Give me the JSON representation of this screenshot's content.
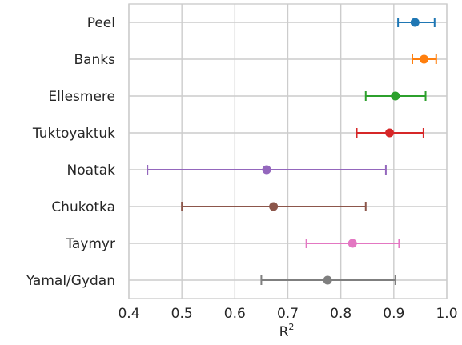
{
  "chart_data": {
    "type": "scatter",
    "subtype": "dot-with-error-bars",
    "title": "",
    "xlabel": "R",
    "xlabel_superscript": "2",
    "ylabel": "",
    "xlim": [
      0.4,
      1.0
    ],
    "xticks": [
      "0.4",
      "0.5",
      "0.6",
      "0.7",
      "0.8",
      "0.9",
      "1.0"
    ],
    "grid": true,
    "legend": "none",
    "series": [
      {
        "name": "Peel",
        "value": 0.94,
        "lower": 0.908,
        "upper": 0.977,
        "color": "#1f77b4"
      },
      {
        "name": "Banks",
        "value": 0.957,
        "lower": 0.935,
        "upper": 0.98,
        "color": "#ff7f0e"
      },
      {
        "name": "Ellesmere",
        "value": 0.903,
        "lower": 0.847,
        "upper": 0.96,
        "color": "#2ca02c"
      },
      {
        "name": "Tuktoyaktuk",
        "value": 0.892,
        "lower": 0.83,
        "upper": 0.956,
        "color": "#d62728"
      },
      {
        "name": "Noatak",
        "value": 0.66,
        "lower": 0.435,
        "upper": 0.885,
        "color": "#9467bd"
      },
      {
        "name": "Chukotka",
        "value": 0.673,
        "lower": 0.5,
        "upper": 0.847,
        "color": "#8c564b"
      },
      {
        "name": "Taymyr",
        "value": 0.822,
        "lower": 0.735,
        "upper": 0.91,
        "color": "#e377c2"
      },
      {
        "name": "Yamal/Gydan",
        "value": 0.775,
        "lower": 0.65,
        "upper": 0.903,
        "color": "#7f7f7f"
      }
    ]
  }
}
